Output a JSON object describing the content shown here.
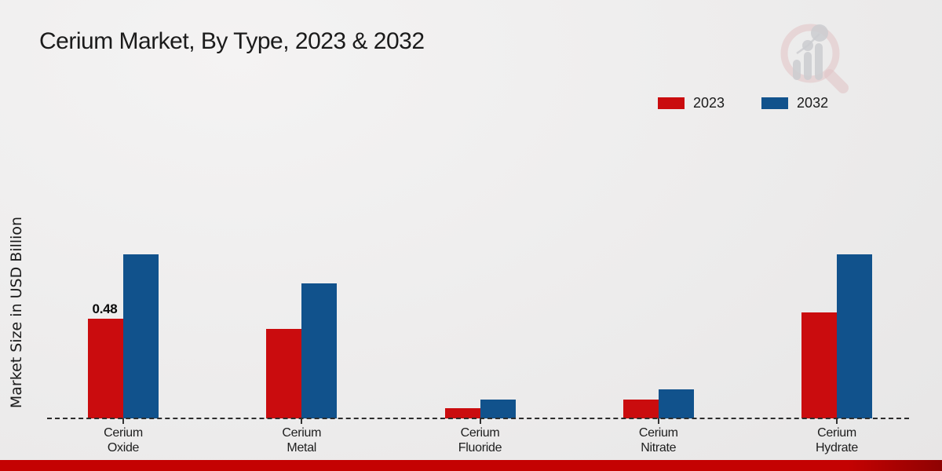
{
  "title": "Cerium Market, By Type, 2023 & 2032",
  "ylabel": "Market Size in USD Billion",
  "watermark_icon": "magnifier-bar-chart-watermark",
  "colors": {
    "series_2023": "#ca0c0e",
    "series_2032": "#11528c",
    "bottom_strip": "#c40202",
    "baseline": "#2d2d2d"
  },
  "chart_data": {
    "type": "bar",
    "title": "Cerium Market, By Type, 2023 & 2032",
    "xlabel": "",
    "ylabel": "Market Size in USD Billion",
    "categories": [
      "Cerium Oxide",
      "Cerium Metal",
      "Cerium Fluoride",
      "Cerium Nitrate",
      "Cerium Hydrate"
    ],
    "series": [
      {
        "name": "2023",
        "color": "#ca0c0e",
        "values": [
          0.48,
          0.43,
          0.05,
          0.09,
          0.51
        ]
      },
      {
        "name": "2032",
        "color": "#11528c",
        "values": [
          0.79,
          0.65,
          0.09,
          0.14,
          0.79
        ]
      }
    ],
    "data_labels": [
      {
        "category": "Cerium Oxide",
        "series": "2023",
        "text": "0.48"
      }
    ],
    "ylim": [
      0,
      1.0
    ],
    "grid": false,
    "y_axis_ticks_visible": false,
    "legend_position": "top-right",
    "baseline_style": "dashed"
  }
}
